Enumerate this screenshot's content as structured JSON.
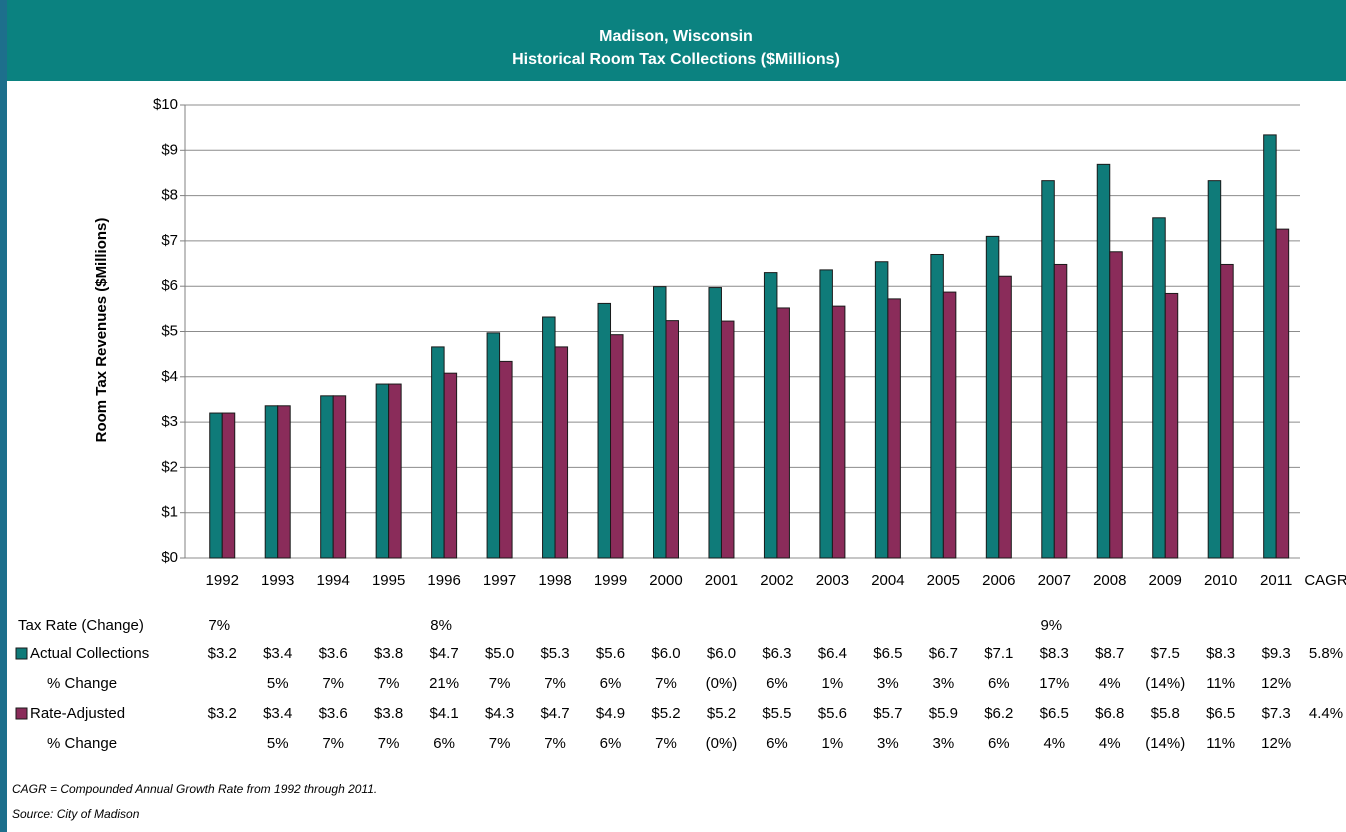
{
  "chart_data": {
    "type": "bar",
    "title": "Madison, Wisconsin",
    "subtitle": "Historical Room Tax Collections ($Millions)",
    "y_label": "Room Tax Revenues ($Millions)",
    "categories": [
      "1992",
      "1993",
      "1994",
      "1995",
      "1996",
      "1997",
      "1998",
      "1999",
      "2000",
      "2001",
      "2002",
      "2003",
      "2004",
      "2005",
      "2006",
      "2007",
      "2008",
      "2009",
      "2010",
      "2011"
    ],
    "cagr_label": "CAGR",
    "ylim": [
      0,
      10
    ],
    "yticks": [
      {
        "value": 0,
        "label": "$0"
      },
      {
        "value": 1,
        "label": "$1"
      },
      {
        "value": 2,
        "label": "$2"
      },
      {
        "value": 3,
        "label": "$3"
      },
      {
        "value": 4,
        "label": "$4"
      },
      {
        "value": 5,
        "label": "$5"
      },
      {
        "value": 6,
        "label": "$6"
      },
      {
        "value": 7,
        "label": "$7"
      },
      {
        "value": 8,
        "label": "$8"
      },
      {
        "value": 9,
        "label": "$9"
      },
      {
        "value": 10,
        "label": "$10"
      }
    ],
    "grid": true,
    "series": [
      {
        "name": "Actual Collections",
        "color": "#0f7b79",
        "values": [
          3.2,
          3.36,
          3.58,
          3.84,
          4.66,
          4.97,
          5.32,
          5.62,
          5.99,
          5.97,
          6.3,
          6.36,
          6.54,
          6.7,
          7.1,
          8.33,
          8.69,
          7.51,
          8.33,
          9.34
        ],
        "value_labels": [
          "$3.2",
          "$3.4",
          "$3.6",
          "$3.8",
          "$4.7",
          "$5.0",
          "$5.3",
          "$5.6",
          "$6.0",
          "$6.0",
          "$6.3",
          "$6.4",
          "$6.5",
          "$6.7",
          "$7.1",
          "$8.3",
          "$8.7",
          "$7.5",
          "$8.3",
          "$9.3"
        ],
        "cagr": "5.8%",
        "change_label": "% Change",
        "changes": [
          null,
          "5%",
          "7%",
          "7%",
          "21%",
          "7%",
          "7%",
          "6%",
          "7%",
          "(0%)",
          "6%",
          "1%",
          "3%",
          "3%",
          "6%",
          "17%",
          "4%",
          "(14%)",
          "11%",
          "12%"
        ]
      },
      {
        "name": "Rate-Adjusted",
        "color": "#8a2c5a",
        "values": [
          3.2,
          3.36,
          3.58,
          3.84,
          4.08,
          4.34,
          4.66,
          4.93,
          5.24,
          5.23,
          5.52,
          5.56,
          5.72,
          5.87,
          6.22,
          6.48,
          6.76,
          5.84,
          6.48,
          7.26
        ],
        "value_labels": [
          "$3.2",
          "$3.4",
          "$3.6",
          "$3.8",
          "$4.1",
          "$4.3",
          "$4.7",
          "$4.9",
          "$5.2",
          "$5.2",
          "$5.5",
          "$5.6",
          "$5.7",
          "$5.9",
          "$6.2",
          "$6.5",
          "$6.8",
          "$5.8",
          "$6.5",
          "$7.3"
        ],
        "cagr": "4.4%",
        "change_label": "% Change",
        "changes": [
          null,
          "5%",
          "7%",
          "7%",
          "6%",
          "7%",
          "7%",
          "6%",
          "7%",
          "(0%)",
          "6%",
          "1%",
          "3%",
          "3%",
          "6%",
          "4%",
          "4%",
          "(14%)",
          "11%",
          "12%"
        ]
      }
    ],
    "tax_rate": {
      "label": "Tax Rate (Change)",
      "cells": [
        "7%",
        null,
        null,
        null,
        "8%",
        null,
        null,
        null,
        null,
        null,
        null,
        null,
        null,
        null,
        null,
        "9%",
        null,
        null,
        null,
        null
      ]
    },
    "notes": [
      "CAGR = Compounded Annual Growth Rate from 1992 through 2011.",
      "Source: City of Madison"
    ]
  }
}
